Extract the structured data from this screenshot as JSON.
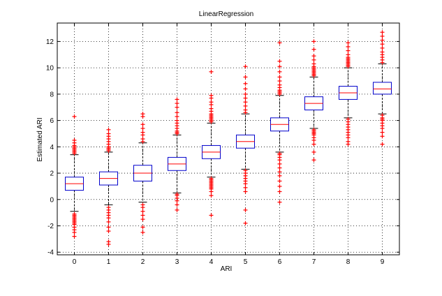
{
  "chart_data": {
    "type": "boxplot",
    "title": "LinearRegression",
    "xlabel": "ARI",
    "ylabel": "Estimated ARI",
    "ylim": [
      -4.2,
      13.4
    ],
    "xlim": [
      -0.5,
      9.5
    ],
    "x_ticks": [
      "0",
      "1",
      "2",
      "3",
      "4",
      "5",
      "6",
      "7",
      "8",
      "9"
    ],
    "y_ticks": [
      "-4",
      "-2",
      "0",
      "2",
      "4",
      "6",
      "8",
      "10",
      "12"
    ],
    "grid": "dotted",
    "colors": {
      "box": "#0000cc",
      "median": "#ff0000",
      "whisker": "#000000",
      "outlier": "#ff0000"
    },
    "boxes": [
      {
        "category": "0",
        "whisker_low": -0.9,
        "q1": 0.7,
        "median": 1.2,
        "q3": 1.7,
        "whisker_high": 3.4,
        "outliers": [
          -2.8,
          -2.5,
          -2.3,
          -2.1,
          -1.9,
          -1.8,
          -1.7,
          -1.6,
          -1.5,
          -1.4,
          -1.3,
          -1.2,
          -1.1,
          3.5,
          3.6,
          3.7,
          3.8,
          3.9,
          4.0,
          4.1,
          4.3,
          4.5,
          6.3
        ]
      },
      {
        "category": "1",
        "whisker_low": -0.4,
        "q1": 1.1,
        "median": 1.6,
        "q3": 2.1,
        "whisker_high": 3.6,
        "outliers": [
          -3.4,
          -3.2,
          -2.4,
          -2.1,
          -1.7,
          -1.4,
          -1.2,
          -1.0,
          -0.8,
          -0.6,
          3.7,
          3.8,
          3.9,
          4.0,
          4.2,
          4.4,
          4.6,
          4.8,
          5.0,
          5.3
        ]
      },
      {
        "category": "2",
        "whisker_low": -0.2,
        "q1": 1.4,
        "median": 2.0,
        "q3": 2.6,
        "whisker_high": 4.3,
        "outliers": [
          -2.5,
          -2.1,
          -1.5,
          -1.2,
          -0.9,
          -0.6,
          -0.4,
          4.4,
          4.6,
          4.9,
          5.1,
          5.4,
          5.7,
          6.3,
          6.5
        ]
      },
      {
        "category": "3",
        "whisker_low": 0.5,
        "q1": 2.2,
        "median": 2.7,
        "q3": 3.2,
        "whisker_high": 4.9,
        "outliers": [
          -0.8,
          -0.4,
          -0.1,
          0.1,
          0.3,
          0.4,
          5.0,
          5.1,
          5.2,
          5.4,
          5.6,
          5.8,
          6.0,
          6.3,
          6.6,
          7.0,
          7.3,
          7.6
        ]
      },
      {
        "category": "4",
        "whisker_low": 1.7,
        "q1": 3.1,
        "median": 3.6,
        "q3": 4.1,
        "whisker_high": 5.8,
        "outliers": [
          -1.2,
          0.3,
          0.6,
          0.8,
          0.9,
          1.0,
          1.1,
          1.2,
          1.3,
          1.4,
          1.5,
          1.6,
          5.9,
          6.0,
          6.1,
          6.2,
          6.3,
          6.4,
          6.5,
          6.7,
          6.9,
          7.2,
          7.4,
          7.7,
          7.9,
          9.7
        ]
      },
      {
        "category": "5",
        "whisker_low": 2.3,
        "q1": 3.9,
        "median": 4.4,
        "q3": 4.9,
        "whisker_high": 6.5,
        "outliers": [
          -1.8,
          -0.8,
          0.6,
          0.9,
          1.2,
          1.4,
          1.6,
          1.8,
          2.0,
          2.2,
          6.6,
          6.8,
          7.1,
          7.4,
          7.7,
          8.0,
          8.4,
          8.8,
          9.3,
          10.1
        ]
      },
      {
        "category": "6",
        "whisker_low": 3.6,
        "q1": 5.2,
        "median": 5.7,
        "q3": 6.2,
        "whisker_high": 7.9,
        "outliers": [
          -0.2,
          0.6,
          1.0,
          1.4,
          1.8,
          2.1,
          2.4,
          2.7,
          3.0,
          3.2,
          3.4,
          3.5,
          8.0,
          8.1,
          8.2,
          8.3,
          8.5,
          8.7,
          9.0,
          9.3,
          9.7,
          10.1,
          10.5,
          11.9
        ]
      },
      {
        "category": "7",
        "whisker_low": 5.4,
        "q1": 6.8,
        "median": 7.3,
        "q3": 7.8,
        "whisker_high": 9.3,
        "outliers": [
          3.0,
          3.6,
          4.2,
          4.5,
          4.7,
          4.9,
          5.0,
          5.1,
          5.2,
          5.3,
          9.4,
          9.5,
          9.6,
          9.7,
          9.8,
          9.9,
          10.0,
          10.1,
          10.3,
          10.6,
          10.9,
          11.4,
          12.0
        ]
      },
      {
        "category": "8",
        "whisker_low": 6.2,
        "q1": 7.6,
        "median": 8.1,
        "q3": 8.6,
        "whisker_high": 10.0,
        "outliers": [
          4.2,
          4.4,
          4.7,
          4.9,
          5.1,
          5.3,
          5.5,
          5.7,
          5.9,
          6.1,
          10.1,
          10.2,
          10.3,
          10.4,
          10.5,
          10.6,
          10.7,
          10.8,
          11.0,
          11.3,
          11.6,
          11.9
        ]
      },
      {
        "category": "9",
        "whisker_low": 6.5,
        "q1": 8.0,
        "median": 8.4,
        "q3": 8.9,
        "whisker_high": 10.3,
        "outliers": [
          4.2,
          4.8,
          5.1,
          5.4,
          5.6,
          5.8,
          6.0,
          6.1,
          6.2,
          6.4,
          10.4,
          10.6,
          10.8,
          11.0,
          11.2,
          11.5,
          11.8,
          12.1,
          12.4,
          12.7
        ]
      }
    ]
  }
}
